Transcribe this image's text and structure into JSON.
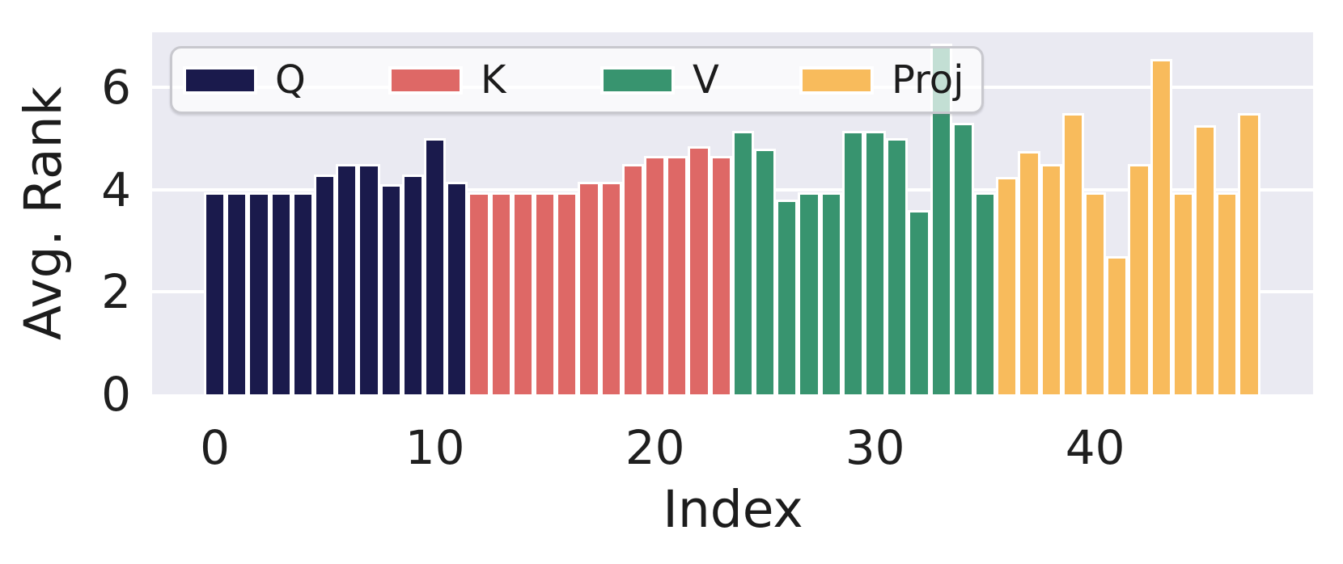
{
  "chart_data": {
    "type": "bar",
    "title": "",
    "xlabel": "Index",
    "ylabel": "Avg. Rank",
    "x": "bar index 0..47, twelve bars per weight-matrix group",
    "x_ticks": [
      0,
      10,
      20,
      30,
      40
    ],
    "y_ticks": [
      0,
      2,
      4,
      6
    ],
    "ylim": [
      0,
      7.07
    ],
    "grid": "horizontal white gridlines on light lavender background (seaborn darkgrid style)",
    "legend_position": "upper left, inside plot, semi-transparent white rounded box",
    "bars_per_group": 12,
    "series": [
      {
        "name": "Q",
        "color": "#1a1a4c",
        "start_index": 0,
        "values": [
          3.95,
          3.95,
          3.95,
          3.95,
          3.95,
          4.3,
          4.5,
          4.5,
          4.1,
          4.3,
          5.0,
          4.15
        ]
      },
      {
        "name": "K",
        "color": "#de6866",
        "start_index": 12,
        "values": [
          3.95,
          3.95,
          3.95,
          3.95,
          3.95,
          4.15,
          4.15,
          4.5,
          4.65,
          4.65,
          4.85,
          4.65
        ]
      },
      {
        "name": "V",
        "color": "#38946f",
        "start_index": 24,
        "values": [
          5.15,
          4.8,
          3.8,
          3.95,
          3.95,
          5.15,
          5.15,
          5.0,
          3.6,
          6.85,
          5.3,
          3.95
        ]
      },
      {
        "name": "Proj",
        "color": "#f8bb5c",
        "start_index": 36,
        "values": [
          4.25,
          4.75,
          4.5,
          5.5,
          3.95,
          2.7,
          4.5,
          6.55,
          3.95,
          5.25,
          3.95,
          5.5
        ]
      }
    ],
    "note": "bar at index 33 (tallest V bar, ~6.85) rises up behind the semi-transparent legend box, showing through as a pale teal band"
  },
  "colors": {
    "figure_bg": "#ffffff",
    "plot_bg": "#eaeaf2",
    "gridline": "#ffffff",
    "bar_edge": "#ffffff",
    "legend_border": "#c8c8ce",
    "text": "#1c1c1c"
  }
}
